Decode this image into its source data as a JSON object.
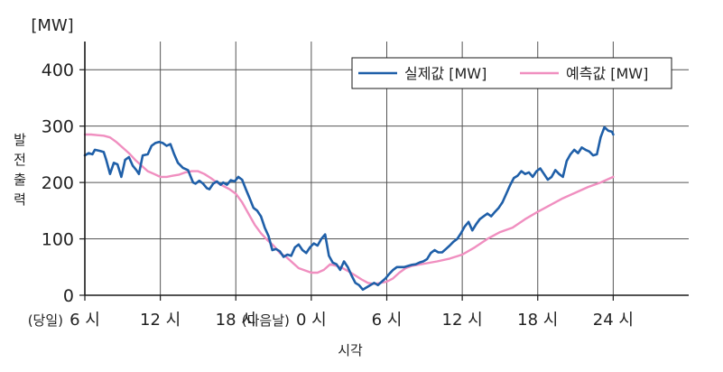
{
  "chart_data": {
    "type": "line",
    "ylabel": "발전출력",
    "yunit": "[MW]",
    "xlabel": "시각",
    "ylim": [
      0,
      450
    ],
    "xlim": [
      6,
      54
    ],
    "grid": true,
    "legend_position": "top-right",
    "y_ticks": [
      0,
      100,
      200,
      300,
      400
    ],
    "x_ticks": [
      {
        "x": 6,
        "label": "6 시",
        "prefix": "(당일)"
      },
      {
        "x": 12,
        "label": "12 시",
        "prefix": ""
      },
      {
        "x": 18,
        "label": "18 시",
        "prefix": ""
      },
      {
        "x": 24,
        "label": "0 시",
        "prefix": "(다음날)"
      },
      {
        "x": 30,
        "label": "6 시",
        "prefix": ""
      },
      {
        "x": 36,
        "label": "12 시",
        "prefix": ""
      },
      {
        "x": 42,
        "label": "18 시",
        "prefix": ""
      },
      {
        "x": 48,
        "label": "24 시",
        "prefix": ""
      }
    ],
    "series": [
      {
        "name": "실제값 [MW]",
        "color": "#1f5fa8",
        "x": [
          6.0,
          6.3,
          6.6,
          6.8,
          7.2,
          7.5,
          7.7,
          8.0,
          8.3,
          8.6,
          8.9,
          9.2,
          9.5,
          9.8,
          10.1,
          10.3,
          10.6,
          11.0,
          11.3,
          11.6,
          11.9,
          12.2,
          12.5,
          12.8,
          13.1,
          13.4,
          13.8,
          14.2,
          14.6,
          14.8,
          15.1,
          15.4,
          15.7,
          15.9,
          16.2,
          16.5,
          16.8,
          17.0,
          17.3,
          17.6,
          17.9,
          18.2,
          18.5,
          18.8,
          19.1,
          19.4,
          19.7,
          20.0,
          20.3,
          20.6,
          20.9,
          21.2,
          21.5,
          21.8,
          22.1,
          22.4,
          22.7,
          23.0,
          23.3,
          23.6,
          23.9,
          24.2,
          24.5,
          24.8,
          25.1,
          25.4,
          25.7,
          26.0,
          26.3,
          26.6,
          26.9,
          27.2,
          27.5,
          27.8,
          28.1,
          28.4,
          28.7,
          29.0,
          29.3,
          29.6,
          29.9,
          30.2,
          30.5,
          30.8,
          31.1,
          31.4,
          31.7,
          32.0,
          32.3,
          32.6,
          32.9,
          33.2,
          33.5,
          33.8,
          34.1,
          34.4,
          34.7,
          35.0,
          35.3,
          35.6,
          35.9,
          36.2,
          36.5,
          36.8,
          37.1,
          37.4,
          37.7,
          38.0,
          38.3,
          38.6,
          38.9,
          39.2,
          39.5,
          39.8,
          40.1,
          40.4,
          40.7,
          41.0,
          41.3,
          41.6,
          41.9,
          42.2,
          42.5,
          42.8,
          43.1,
          43.4,
          43.7,
          44.0,
          44.3,
          44.6,
          44.9,
          45.2,
          45.5,
          45.8,
          46.1,
          46.4,
          46.7,
          47.0,
          47.3,
          47.6,
          47.9,
          48.0
        ],
        "values": [
          248,
          252,
          250,
          258,
          256,
          254,
          240,
          215,
          235,
          232,
          210,
          240,
          245,
          230,
          222,
          215,
          248,
          250,
          265,
          270,
          272,
          270,
          265,
          268,
          250,
          235,
          226,
          222,
          200,
          198,
          203,
          198,
          190,
          188,
          198,
          202,
          196,
          200,
          196,
          204,
          202,
          210,
          205,
          188,
          172,
          155,
          150,
          140,
          120,
          105,
          80,
          82,
          78,
          68,
          72,
          70,
          85,
          90,
          80,
          75,
          85,
          92,
          88,
          100,
          108,
          70,
          58,
          55,
          45,
          60,
          50,
          35,
          22,
          18,
          10,
          14,
          18,
          22,
          18,
          24,
          30,
          38,
          45,
          50,
          50,
          50,
          52,
          54,
          55,
          58,
          60,
          64,
          75,
          80,
          76,
          76,
          82,
          88,
          95,
          100,
          110,
          122,
          130,
          115,
          126,
          135,
          140,
          145,
          140,
          148,
          155,
          165,
          180,
          195,
          208,
          212,
          220,
          215,
          218,
          210,
          220,
          225,
          215,
          205,
          210,
          222,
          215,
          210,
          238,
          250,
          258,
          252,
          262,
          258,
          255,
          248,
          250,
          280,
          298,
          292,
          290,
          285
        ]
      },
      {
        "name": "예측값 [MW]",
        "color": "#f08fc0",
        "x": [
          6.0,
          6.5,
          7.0,
          7.5,
          8.0,
          8.5,
          9.0,
          9.5,
          10.0,
          10.5,
          11.0,
          11.5,
          12.0,
          12.5,
          13.0,
          13.5,
          14.0,
          14.5,
          15.0,
          15.5,
          16.0,
          16.5,
          17.0,
          17.5,
          18.0,
          18.5,
          19.0,
          19.5,
          20.0,
          20.5,
          21.0,
          21.5,
          22.0,
          22.5,
          23.0,
          23.5,
          24.0,
          24.5,
          25.0,
          25.5,
          26.0,
          26.5,
          27.0,
          27.5,
          28.0,
          28.5,
          29.0,
          29.5,
          30.0,
          30.5,
          31.0,
          31.5,
          32.0,
          33.0,
          34.0,
          35.0,
          36.0,
          37.0,
          38.0,
          39.0,
          40.0,
          41.0,
          42.0,
          43.0,
          44.0,
          45.0,
          46.0,
          47.0,
          48.0
        ],
        "values": [
          285,
          285,
          284,
          283,
          280,
          272,
          262,
          252,
          240,
          230,
          220,
          215,
          210,
          210,
          212,
          214,
          218,
          220,
          220,
          215,
          208,
          200,
          194,
          188,
          180,
          165,
          145,
          125,
          110,
          98,
          88,
          75,
          68,
          58,
          48,
          44,
          40,
          40,
          45,
          55,
          52,
          48,
          42,
          35,
          28,
          22,
          20,
          22,
          24,
          30,
          40,
          48,
          52,
          56,
          60,
          65,
          72,
          85,
          100,
          112,
          120,
          135,
          148,
          160,
          172,
          182,
          192,
          200,
          210
        ]
      }
    ]
  }
}
